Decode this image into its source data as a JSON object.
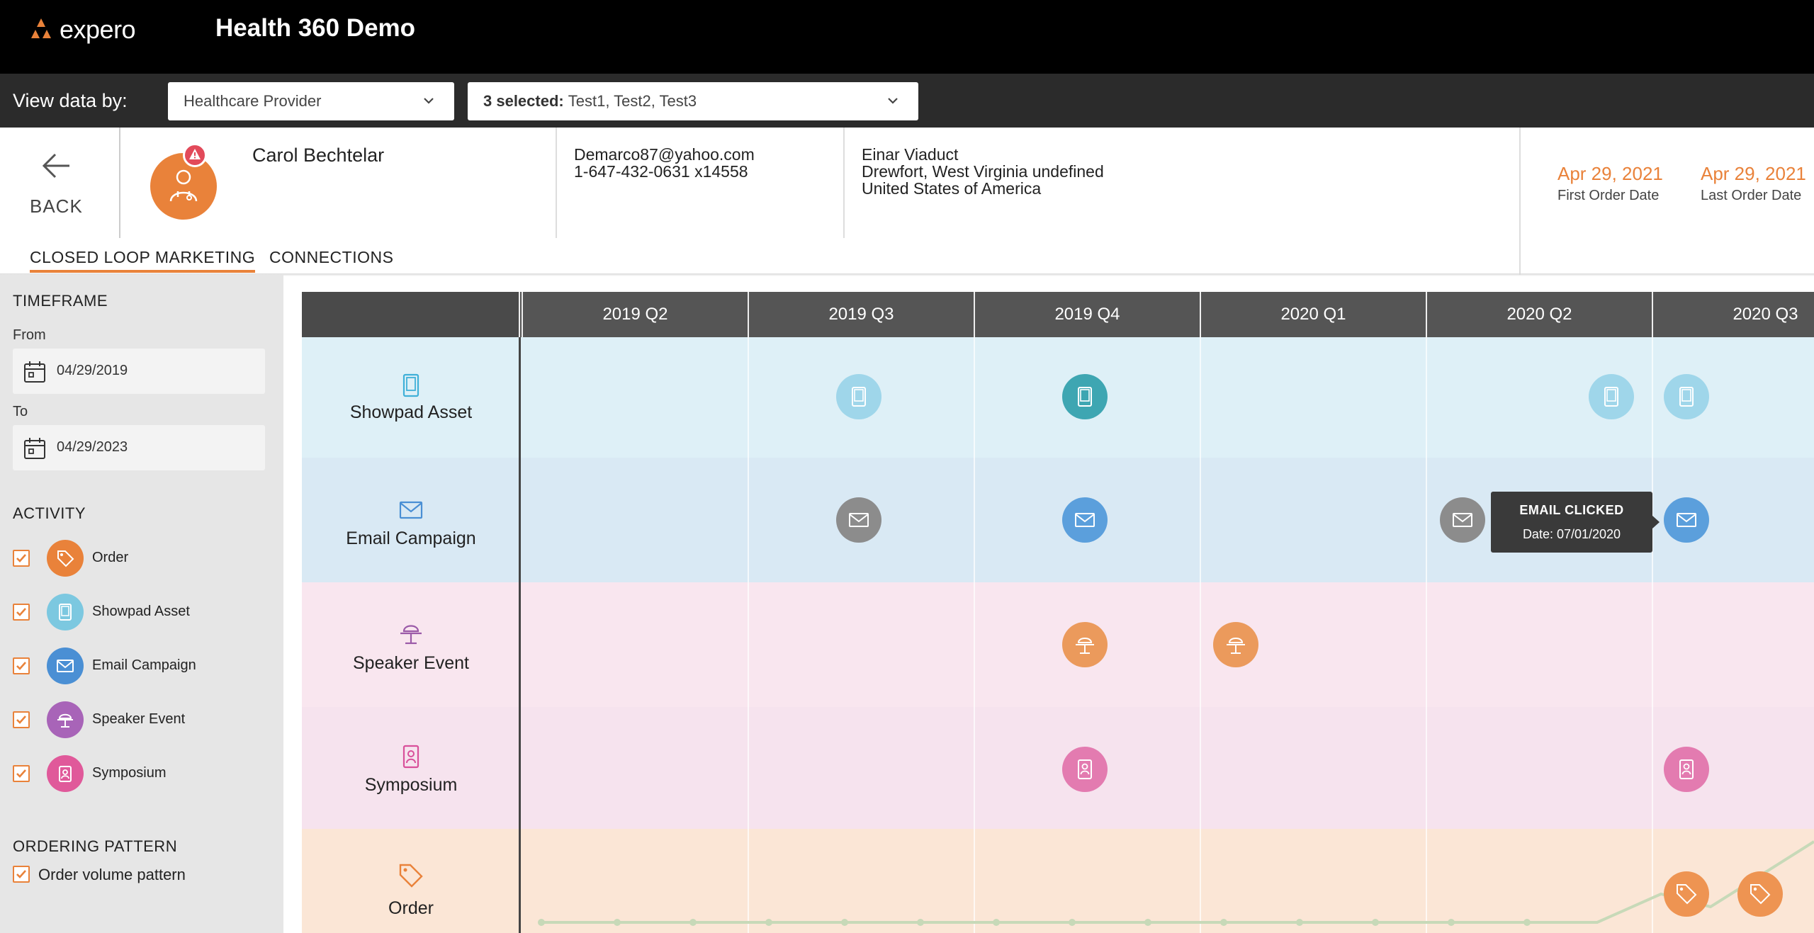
{
  "app": {
    "logo_text": "expero",
    "title": "Health 360 Demo"
  },
  "filters": {
    "label": "View data by:",
    "provider_value": "Healthcare Provider",
    "tests_prefix": "3 selected:",
    "tests_value": "Test1, Test2, Test3"
  },
  "profile": {
    "back_label": "BACK",
    "name": "Carol Bechtelar",
    "email": "Demarco87@yahoo.com",
    "phone": "1-647-432-0631 x14558",
    "address_line1": "Einar Viaduct",
    "address_line2": "Drewfort, West Virginia undefined",
    "address_line3": "United States of America",
    "first_order_date": "Apr 29, 2021",
    "first_order_label": "First Order Date",
    "last_order_date": "Apr 29, 2021",
    "last_order_label": "Last Order Date"
  },
  "tabs": [
    {
      "label": "CLOSED LOOP MARKETING",
      "active": true
    },
    {
      "label": "CONNECTIONS",
      "active": false
    }
  ],
  "sidebar": {
    "timeframe_heading": "TIMEFRAME",
    "from_label": "From",
    "from_value": "04/29/2019",
    "to_label": "To",
    "to_value": "04/29/2023",
    "activity_heading": "ACTIVITY",
    "activities": [
      {
        "label": "Order",
        "icon": "tag-icon",
        "color": "#e9823a",
        "checked": true
      },
      {
        "label": "Showpad Asset",
        "icon": "tablet-icon",
        "color": "#7cc8e0",
        "checked": true
      },
      {
        "label": "Email Campaign",
        "icon": "envelope-icon",
        "color": "#4a8fd4",
        "checked": true
      },
      {
        "label": "Speaker Event",
        "icon": "podium-icon",
        "color": "#a864b8",
        "checked": true
      },
      {
        "label": "Symposium",
        "icon": "badge-icon",
        "color": "#e0599a",
        "checked": true
      }
    ],
    "ordering_heading": "ORDERING PATTERN",
    "ordering_option": "Order volume pattern"
  },
  "timeline": {
    "quarters": [
      "2019 Q2",
      "2019 Q3",
      "2019 Q4",
      "2020 Q1",
      "2020 Q2",
      "2020 Q3"
    ],
    "rows": [
      {
        "label": "Showpad Asset",
        "icon": "tablet-icon",
        "bg": "#def0f7",
        "icon_color": "#3fb0d8"
      },
      {
        "label": "Email Campaign",
        "icon": "envelope-icon",
        "bg": "#d9e9f4",
        "icon_color": "#4a8fd4"
      },
      {
        "label": "Speaker Event",
        "icon": "podium-icon",
        "bg": "#f9e6ef",
        "icon_color": "#9b5aa8"
      },
      {
        "label": "Symposium",
        "icon": "badge-icon",
        "bg": "#f6e3ee",
        "icon_color": "#d9509a"
      },
      {
        "label": "Order",
        "icon": "tag-icon",
        "bg": "#fbe6d6",
        "icon_color": "#e9823a"
      }
    ],
    "colors": {
      "showpad_light": "#9fd6ea",
      "showpad_dark": "#3ea6b2",
      "email_grey": "#8c8c8c",
      "email_blue": "#5b9fdc",
      "speaker": "#eb9a5c",
      "symposium": "#e37bb0",
      "order": "#ee9452"
    },
    "tooltip": {
      "title": "EMAIL CLICKED",
      "date": "Date: 07/01/2020"
    }
  }
}
